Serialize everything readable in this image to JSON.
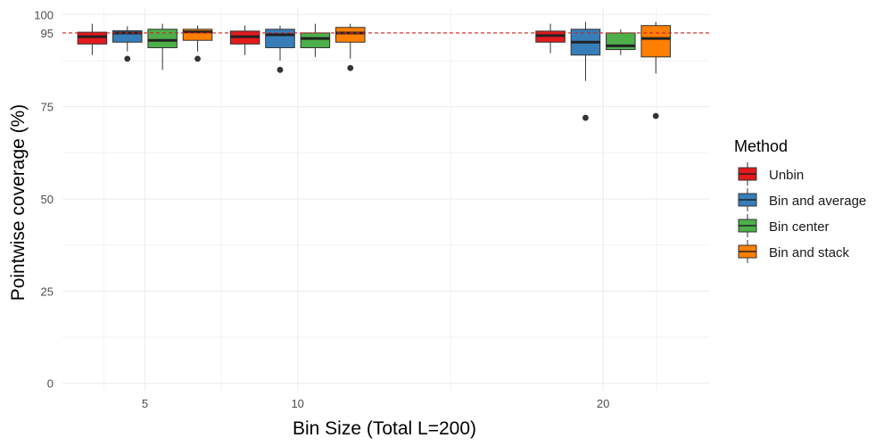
{
  "chart_data": {
    "type": "boxplot",
    "xlabel": "Bin Size (Total L=200)",
    "ylabel": "Pointwise coverage (%)",
    "ylim": [
      -2,
      102
    ],
    "y_ticks": [
      0,
      25,
      50,
      75,
      95,
      100
    ],
    "reference_line": {
      "y": 95,
      "style": "dashed",
      "color": "#cc2222"
    },
    "x_axis": {
      "domain": [
        2.3,
        23.5
      ],
      "breaks": [
        5,
        10,
        20
      ],
      "minor_breaks": [
        7.5,
        15
      ]
    },
    "legend": {
      "title": "Method",
      "position": "right"
    },
    "dodge": 1.15,
    "box_width": 0.95,
    "series": [
      {
        "name": "Unbin",
        "color": "#E41A1C"
      },
      {
        "name": "Bin and average",
        "color": "#377EB8"
      },
      {
        "name": "Bin center",
        "color": "#4DAF4A"
      },
      {
        "name": "Bin and stack",
        "color": "#FF7F00"
      }
    ],
    "groups": [
      {
        "x": 5,
        "label": "5",
        "boxes": [
          {
            "min": 89.0,
            "q1": 92.0,
            "median": 94.0,
            "q3": 95.2,
            "max": 97.5,
            "outliers": []
          },
          {
            "min": 90.0,
            "q1": 92.5,
            "median": 95.0,
            "q3": 95.6,
            "max": 96.8,
            "outliers": [
              88.0
            ]
          },
          {
            "min": 85.0,
            "q1": 91.0,
            "median": 93.0,
            "q3": 96.0,
            "max": 97.5,
            "outliers": []
          },
          {
            "min": 90.0,
            "q1": 93.0,
            "median": 95.3,
            "q3": 96.0,
            "max": 97.0,
            "outliers": [
              88.0
            ]
          }
        ]
      },
      {
        "x": 10,
        "label": "10",
        "boxes": [
          {
            "min": 89.0,
            "q1": 92.0,
            "median": 94.0,
            "q3": 95.5,
            "max": 97.0,
            "outliers": []
          },
          {
            "min": 87.5,
            "q1": 91.0,
            "median": 94.5,
            "q3": 96.0,
            "max": 97.0,
            "outliers": [
              85.0
            ]
          },
          {
            "min": 88.5,
            "q1": 91.0,
            "median": 93.5,
            "q3": 95.0,
            "max": 97.5,
            "outliers": []
          },
          {
            "min": 88.0,
            "q1": 92.5,
            "median": 95.0,
            "q3": 96.5,
            "max": 97.5,
            "outliers": [
              85.5
            ]
          }
        ]
      },
      {
        "x": 20,
        "label": "20",
        "boxes": [
          {
            "min": 89.5,
            "q1": 92.5,
            "median": 94.3,
            "q3": 95.5,
            "max": 97.5,
            "outliers": []
          },
          {
            "min": 82.0,
            "q1": 89.0,
            "median": 92.5,
            "q3": 96.0,
            "max": 98.0,
            "outliers": [
              72.0
            ]
          },
          {
            "min": 89.0,
            "q1": 90.5,
            "median": 91.5,
            "q3": 95.0,
            "max": 96.0,
            "outliers": []
          },
          {
            "min": 84.0,
            "q1": 88.5,
            "median": 93.5,
            "q3": 97.0,
            "max": 98.0,
            "outliers": [
              72.5
            ]
          }
        ]
      }
    ]
  }
}
